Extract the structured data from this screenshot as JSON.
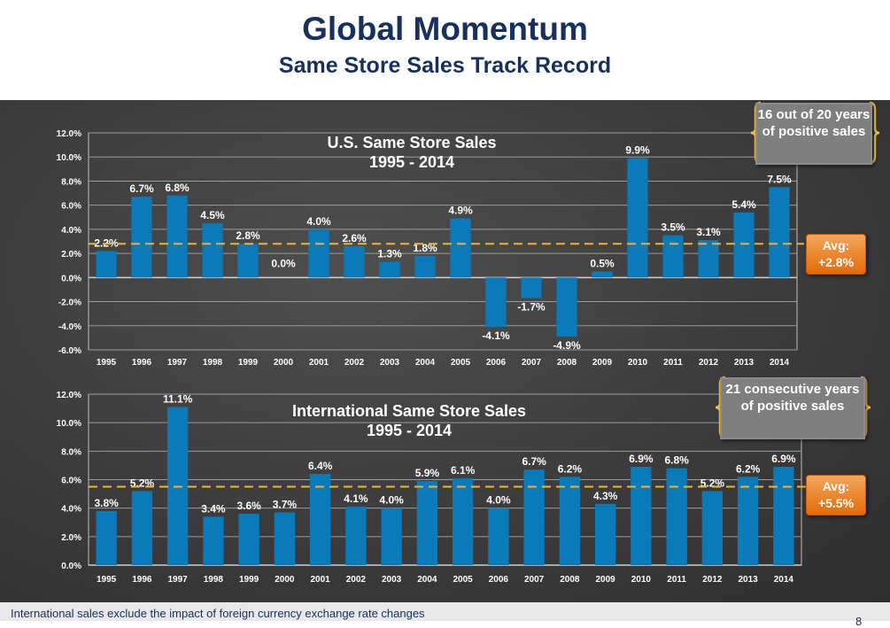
{
  "header": {
    "title": "Global Momentum",
    "subtitle": "Same Store Sales Track Record"
  },
  "footer": {
    "note": "International sales exclude the impact of foreign currency exchange rate changes",
    "page_number": "8"
  },
  "colors": {
    "bar": "#0a7ab9",
    "avg_line": "#e9b43c",
    "title": "#17305e",
    "badge": "#e26b0a"
  },
  "us_callout": "16 out of 20 years of positive sales",
  "us_avg": {
    "label": "Avg:",
    "value": "+2.8%"
  },
  "intl_callout": "21 consecutive years of positive sales",
  "intl_avg": {
    "label": "Avg:",
    "value": "+5.5%"
  },
  "chart_data": [
    {
      "type": "bar",
      "title": "U.S. Same Store Sales",
      "subtitle": "1995 - 2014",
      "categories": [
        "1995",
        "1996",
        "1997",
        "1998",
        "1999",
        "2000",
        "2001",
        "2002",
        "2003",
        "2004",
        "2005",
        "2006",
        "2007",
        "2008",
        "2009",
        "2010",
        "2011",
        "2012",
        "2013",
        "2014"
      ],
      "values": [
        2.2,
        6.7,
        6.8,
        4.5,
        2.8,
        0.0,
        4.0,
        2.6,
        1.3,
        1.8,
        4.9,
        -4.1,
        -1.7,
        -4.9,
        0.5,
        9.9,
        3.5,
        3.1,
        5.4,
        7.5
      ],
      "value_labels": [
        "2.2%",
        "6.7%",
        "6.8%",
        "4.5%",
        "2.8%",
        "0.0%",
        "4.0%",
        "2.6%",
        "1.3%",
        "1.8%",
        "4.9%",
        "-4.1%",
        "-1.7%",
        "-4.9%",
        "0.5%",
        "9.9%",
        "3.5%",
        "3.1%",
        "5.4%",
        "7.5%"
      ],
      "average": 2.8,
      "ylim": [
        -6,
        12
      ],
      "yticks": [
        12,
        10,
        8,
        6,
        4,
        2,
        0,
        -2,
        -4,
        -6
      ],
      "ytick_labels": [
        "12.0%",
        "10.0%",
        "8.0%",
        "6.0%",
        "4.0%",
        "2.0%",
        "0.0%",
        "-2.0%",
        "-4.0%",
        "-6.0%"
      ],
      "grid": true
    },
    {
      "type": "bar",
      "title": "International Same Store Sales",
      "subtitle": "1995 - 2014",
      "categories": [
        "1995",
        "1996",
        "1997",
        "1998",
        "1999",
        "2000",
        "2001",
        "2002",
        "2003",
        "2004",
        "2005",
        "2006",
        "2007",
        "2008",
        "2009",
        "2010",
        "2011",
        "2012",
        "2013",
        "2014"
      ],
      "values": [
        3.8,
        5.2,
        11.1,
        3.4,
        3.6,
        3.7,
        6.4,
        4.1,
        4.0,
        5.9,
        6.1,
        4.0,
        6.7,
        6.2,
        4.3,
        6.9,
        6.8,
        5.2,
        6.2,
        6.9
      ],
      "value_labels": [
        "3.8%",
        "5.2%",
        "11.1%",
        "3.4%",
        "3.6%",
        "3.7%",
        "6.4%",
        "4.1%",
        "4.0%",
        "5.9%",
        "6.1%",
        "4.0%",
        "6.7%",
        "6.2%",
        "4.3%",
        "6.9%",
        "6.8%",
        "5.2%",
        "6.2%",
        "6.9%"
      ],
      "average": 5.5,
      "ylim": [
        0,
        12
      ],
      "yticks": [
        12,
        10,
        8,
        6,
        4,
        2,
        0
      ],
      "ytick_labels": [
        "12.0%",
        "10.0%",
        "8.0%",
        "6.0%",
        "4.0%",
        "2.0%",
        "0.0%"
      ],
      "grid": true
    }
  ]
}
